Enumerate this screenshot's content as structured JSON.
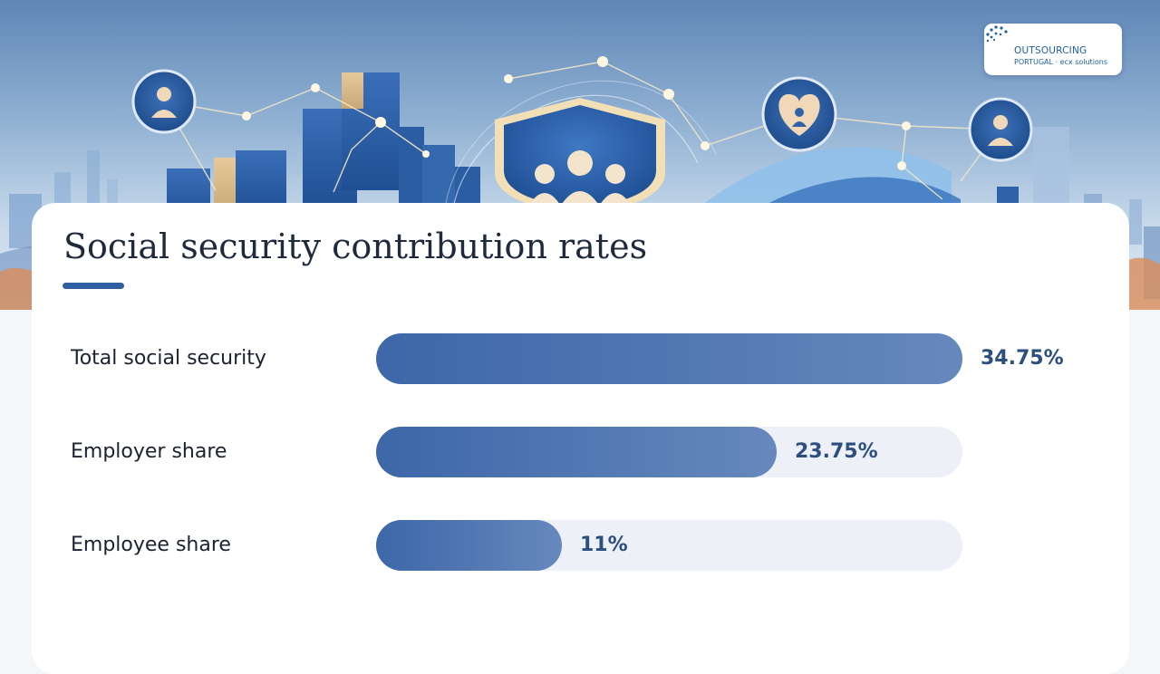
{
  "brand": {
    "logo_line1": "OUTSOURCING",
    "logo_line2": "PORTUGAL · ecx solutions",
    "accent_color": "#2f5fa0",
    "bar_color": "#3d67a8",
    "track_color": "#edf1f7"
  },
  "hero": {
    "icons": [
      "person-icon",
      "shield-group-icon",
      "heart-person-icon",
      "person-icon"
    ]
  },
  "chart_data": {
    "type": "bar",
    "orientation": "horizontal",
    "title": "Social security contribution rates",
    "categories": [
      "Total social security",
      "Employer share",
      "Employee share"
    ],
    "values": [
      34.75,
      23.75,
      11
    ],
    "value_labels": [
      "34.75%",
      "23.75%",
      "11%"
    ],
    "unit": "%",
    "xlim": [
      0,
      34.75
    ],
    "grid": false,
    "legend": "none"
  }
}
